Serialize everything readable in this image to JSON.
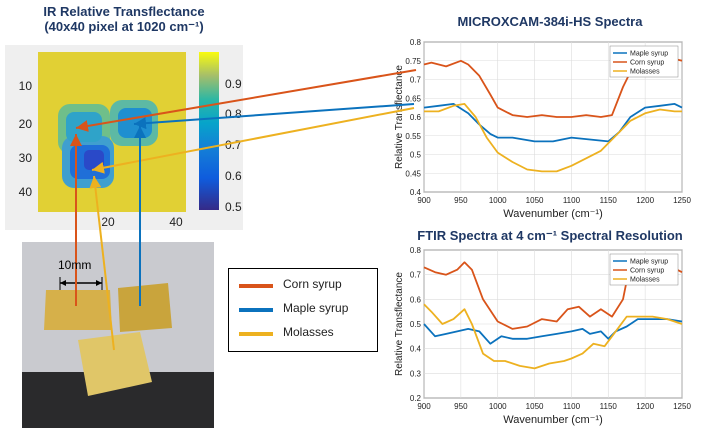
{
  "heatmap": {
    "title_line1": "IR Relative Transflectance",
    "title_line2": "(40x40 pixel at 1020 cm⁻¹)",
    "y_ticks": [
      "10",
      "20",
      "30",
      "40"
    ],
    "x_ticks": [
      "20",
      "40"
    ],
    "colorbar_ticks": [
      "0.9",
      "0.8",
      "0.7",
      "0.6",
      "0.5"
    ]
  },
  "photo": {
    "scale_label": "10mm"
  },
  "legend": [
    {
      "label": "Corn syrup",
      "color": "#d9541a"
    },
    {
      "label": "Maple syrup",
      "color": "#0b72bd"
    },
    {
      "label": "Molasses",
      "color": "#edb120"
    }
  ],
  "chart_data": [
    {
      "type": "line",
      "title": "MICROXCAM-384i-HS Spectra",
      "xlabel": "Wavenumber (cm⁻¹)",
      "ylabel": "Relative Transflectance",
      "xlim": [
        900,
        1250
      ],
      "ylim": [
        0.4,
        0.8
      ],
      "x_ticks": [
        "900",
        "950",
        "1000",
        "1050",
        "1100",
        "1150",
        "1200",
        "1250"
      ],
      "y_ticks": [
        "0.4",
        "0.45",
        "0.5",
        "0.55",
        "0.6",
        "0.65",
        "0.7",
        "0.75",
        "0.8"
      ],
      "grid": true,
      "legend_position": "top-right",
      "series": [
        {
          "name": "Maple syrup",
          "color": "#0b72bd",
          "x": [
            900,
            920,
            940,
            960,
            975,
            990,
            1000,
            1020,
            1050,
            1075,
            1100,
            1125,
            1150,
            1165,
            1180,
            1200,
            1220,
            1240,
            1250
          ],
          "y": [
            0.625,
            0.63,
            0.635,
            0.61,
            0.58,
            0.555,
            0.545,
            0.545,
            0.535,
            0.535,
            0.545,
            0.54,
            0.535,
            0.56,
            0.6,
            0.625,
            0.63,
            0.635,
            0.625
          ]
        },
        {
          "name": "Corn syrup",
          "color": "#d9541a",
          "x": [
            900,
            910,
            930,
            950,
            960,
            975,
            990,
            1000,
            1020,
            1040,
            1060,
            1080,
            1100,
            1120,
            1140,
            1155,
            1170,
            1185,
            1200,
            1220,
            1240,
            1250
          ],
          "y": [
            0.74,
            0.745,
            0.735,
            0.75,
            0.74,
            0.71,
            0.66,
            0.625,
            0.605,
            0.6,
            0.605,
            0.6,
            0.6,
            0.605,
            0.6,
            0.605,
            0.68,
            0.74,
            0.755,
            0.755,
            0.755,
            0.75
          ]
        },
        {
          "name": "Molasses",
          "color": "#edb120",
          "x": [
            900,
            920,
            940,
            955,
            970,
            985,
            1000,
            1020,
            1040,
            1060,
            1080,
            1100,
            1120,
            1140,
            1160,
            1180,
            1200,
            1220,
            1240,
            1250
          ],
          "y": [
            0.615,
            0.615,
            0.63,
            0.635,
            0.6,
            0.545,
            0.505,
            0.48,
            0.46,
            0.455,
            0.455,
            0.47,
            0.49,
            0.51,
            0.55,
            0.59,
            0.61,
            0.62,
            0.615,
            0.615
          ]
        }
      ]
    },
    {
      "type": "line",
      "title": "FTIR Spectra at 4 cm⁻¹ Spectral Resolution",
      "xlabel": "Wavenumber (cm⁻¹)",
      "ylabel": "Relative Transflectance",
      "xlim": [
        900,
        1250
      ],
      "ylim": [
        0.2,
        0.8
      ],
      "x_ticks": [
        "900",
        "950",
        "1000",
        "1050",
        "1100",
        "1150",
        "1200",
        "1250"
      ],
      "y_ticks": [
        "0.2",
        "0.3",
        "0.4",
        "0.5",
        "0.6",
        "0.7",
        "0.8"
      ],
      "grid": true,
      "legend_position": "top-right",
      "series": [
        {
          "name": "Maple syrup",
          "color": "#0b72bd",
          "x": [
            900,
            915,
            930,
            945,
            960,
            975,
            990,
            1005,
            1020,
            1040,
            1060,
            1080,
            1100,
            1115,
            1125,
            1140,
            1150,
            1160,
            1175,
            1190,
            1210,
            1230,
            1250
          ],
          "y": [
            0.5,
            0.45,
            0.46,
            0.47,
            0.48,
            0.47,
            0.42,
            0.45,
            0.44,
            0.44,
            0.45,
            0.46,
            0.47,
            0.48,
            0.46,
            0.47,
            0.44,
            0.47,
            0.49,
            0.52,
            0.52,
            0.52,
            0.51
          ]
        },
        {
          "name": "Corn syrup",
          "color": "#d9541a",
          "x": [
            900,
            915,
            930,
            945,
            955,
            965,
            980,
            1000,
            1020,
            1040,
            1060,
            1080,
            1095,
            1110,
            1125,
            1140,
            1155,
            1170,
            1180,
            1195,
            1205,
            1215,
            1230,
            1250
          ],
          "y": [
            0.73,
            0.71,
            0.7,
            0.72,
            0.75,
            0.72,
            0.6,
            0.51,
            0.48,
            0.49,
            0.52,
            0.51,
            0.56,
            0.57,
            0.53,
            0.56,
            0.53,
            0.6,
            0.75,
            0.77,
            0.73,
            0.72,
            0.74,
            0.71
          ]
        },
        {
          "name": "Molasses",
          "color": "#edb120",
          "x": [
            900,
            910,
            925,
            940,
            955,
            965,
            980,
            995,
            1010,
            1030,
            1050,
            1070,
            1090,
            1100,
            1115,
            1130,
            1145,
            1160,
            1175,
            1190,
            1210,
            1230,
            1250
          ],
          "y": [
            0.58,
            0.55,
            0.5,
            0.52,
            0.56,
            0.5,
            0.38,
            0.35,
            0.35,
            0.33,
            0.32,
            0.34,
            0.35,
            0.36,
            0.38,
            0.42,
            0.41,
            0.47,
            0.53,
            0.53,
            0.53,
            0.52,
            0.5
          ]
        }
      ]
    }
  ]
}
